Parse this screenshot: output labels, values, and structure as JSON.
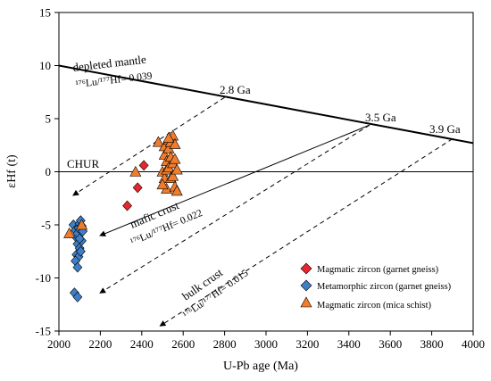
{
  "chart_data": {
    "type": "scatter",
    "xlabel": "U-Pb age (Ma)",
    "ylabel": "εHf (t)",
    "xlim": [
      2000,
      4000
    ],
    "ylim": [
      -15,
      15
    ],
    "xticks": [
      2000,
      2200,
      2400,
      2600,
      2800,
      3000,
      3200,
      3400,
      3600,
      3800,
      4000
    ],
    "yticks": [
      -15,
      -10,
      -5,
      0,
      5,
      10,
      15
    ],
    "grid": false,
    "legend_position": "bottom-right",
    "reference_lines": [
      {
        "name": "depleted mantle",
        "x": [
          2000,
          4000
        ],
        "y": [
          10.0,
          2.7
        ],
        "style": "solid-thick"
      },
      {
        "name": "CHUR",
        "x": [
          2000,
          4000
        ],
        "y": [
          0,
          0
        ],
        "style": "solid-thin"
      },
      {
        "name": "mafic crust",
        "x": [
          2200,
          3500
        ],
        "y": [
          -6.0,
          4.4
        ],
        "style": "solid-arrow"
      }
    ],
    "evolution_lines": [
      {
        "label": "2.8 Ga",
        "x": [
          2800,
          2070
        ],
        "y": [
          7.0,
          -2.2
        ]
      },
      {
        "label": "3.5 Ga",
        "x": [
          3500,
          2200
        ],
        "y": [
          4.4,
          -11.4
        ]
      },
      {
        "label": "3.9 Ga",
        "x": [
          3900,
          2490
        ],
        "y": [
          3.1,
          -14.5
        ]
      }
    ],
    "annotations": {
      "depleted_mantle": "depleted mantle",
      "dm_ratio": "¹⁷⁶Lu/¹⁷⁷Hf= 0.039",
      "chur": "CHUR",
      "mafic_crust": "mafic crust",
      "mafic_ratio": "¹⁷⁶Lu/¹⁷⁷Hf= 0.022",
      "bulk_crust": "bulk crust",
      "bulk_ratio": "¹⁷⁶Lu/¹⁷⁷Hf= 0.015",
      "ga_28": "2.8 Ga",
      "ga_35": "3.5 Ga",
      "ga_39": "3.9 Ga"
    },
    "series": [
      {
        "name": "Magmatic zircon (garnet gneiss)",
        "marker": "diamond",
        "color": "#e8262c",
        "x": [
          2330,
          2380,
          2410
        ],
        "y": [
          -3.2,
          -1.5,
          0.6
        ]
      },
      {
        "name": "Metamorphic zircon (garnet gneiss)",
        "marker": "diamond",
        "color": "#3f7fc6",
        "x": [
          2070,
          2080,
          2085,
          2090,
          2095,
          2100,
          2105,
          2110,
          2115,
          2090,
          2100,
          2110,
          2085,
          2095,
          2105,
          2080,
          2090,
          2100,
          2075,
          2090
        ],
        "y": [
          -5.0,
          -5.5,
          -6.2,
          -5.8,
          -5.3,
          -4.9,
          -4.6,
          -5.1,
          -5.6,
          -6.8,
          -7.2,
          -6.5,
          -7.8,
          -8.0,
          -7.5,
          -8.4,
          -9.0,
          -6.3,
          -11.4,
          -11.8
        ]
      },
      {
        "name": "Magmatic zircon (mica schist)",
        "marker": "triangle",
        "color": "#f07d2d",
        "x": [
          2050,
          2110,
          2370,
          2480,
          2500,
          2510,
          2510,
          2510,
          2520,
          2520,
          2520,
          2530,
          2530,
          2530,
          2540,
          2540,
          2540,
          2550,
          2550,
          2550,
          2560,
          2560,
          2560,
          2570,
          2570,
          2500,
          2530
        ],
        "y": [
          -5.8,
          -5.0,
          0.0,
          2.8,
          0.0,
          -0.6,
          1.6,
          2.4,
          0.2,
          1.0,
          -1.6,
          0.4,
          2.2,
          3.0,
          1.4,
          -0.6,
          2.8,
          -0.4,
          0.8,
          3.4,
          1.2,
          -1.4,
          2.6,
          0.2,
          -1.8,
          -1.2,
          3.2
        ]
      }
    ]
  }
}
